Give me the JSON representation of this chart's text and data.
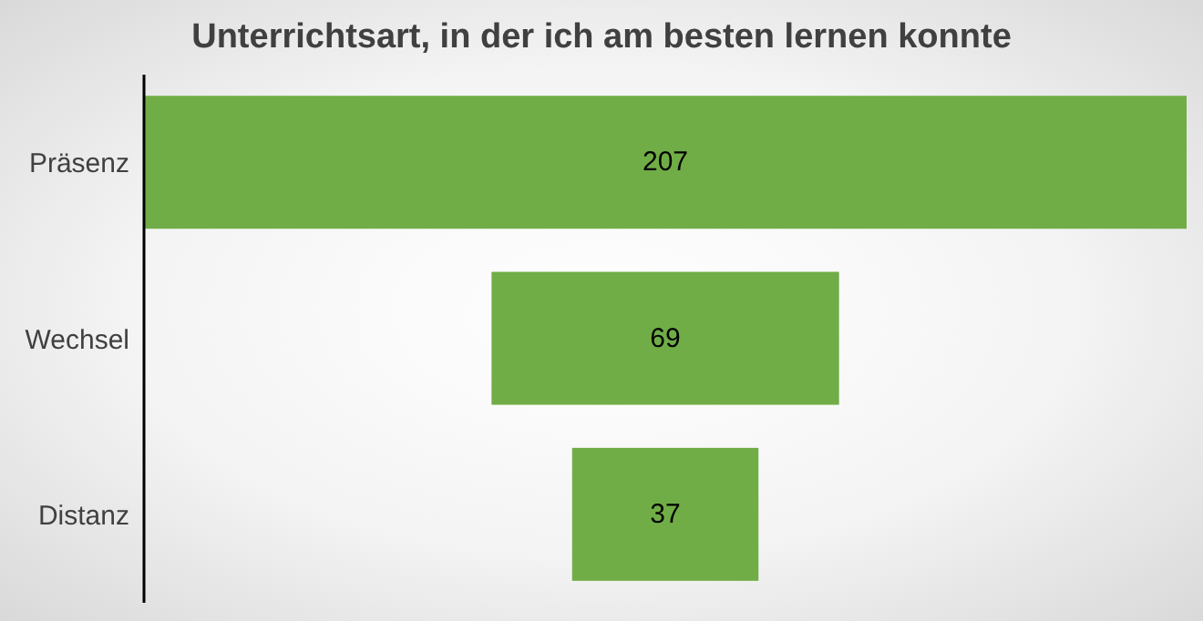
{
  "chart_data": {
    "type": "other",
    "title": "Unterrichtsart, in der ich am besten lernen konnte",
    "categories": [
      "Präsenz",
      "Wechsel",
      "Distanz"
    ],
    "values": [
      207,
      69,
      37
    ],
    "color": "#70ad47",
    "data_labels": true
  }
}
